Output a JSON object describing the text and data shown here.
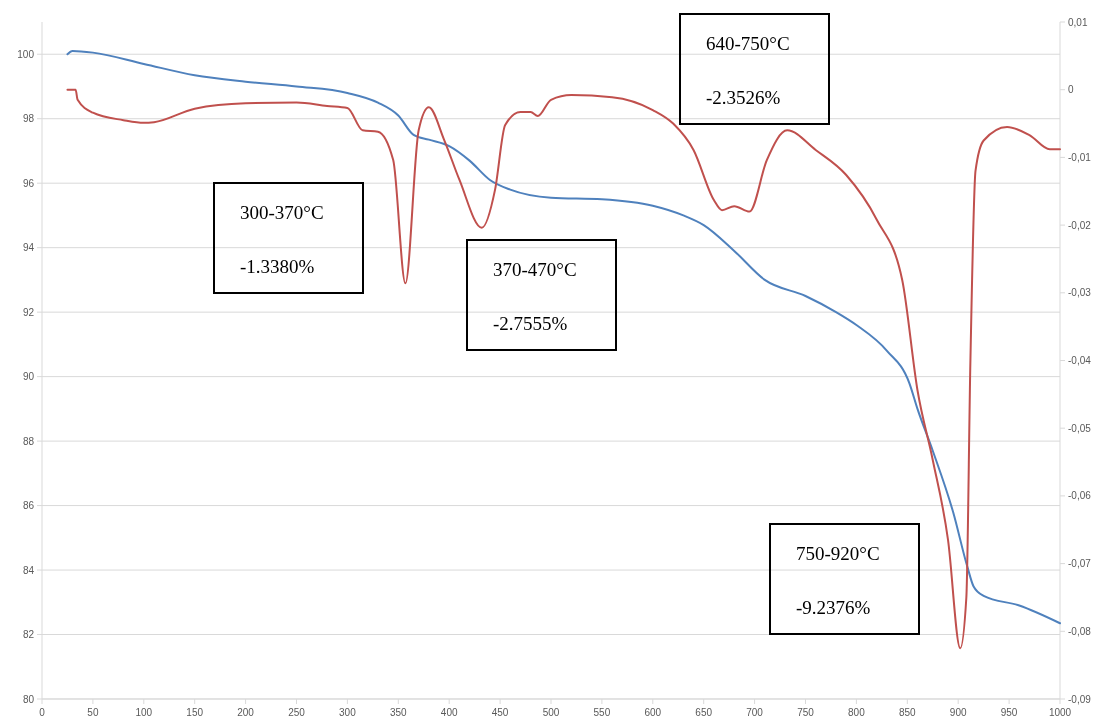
{
  "chart_data": {
    "type": "line",
    "xlim": [
      0,
      1000
    ],
    "xticks": [
      0,
      50,
      100,
      150,
      200,
      250,
      300,
      350,
      400,
      450,
      500,
      550,
      600,
      650,
      700,
      750,
      800,
      850,
      900,
      950,
      1000
    ],
    "ylim": [
      80,
      101
    ],
    "yticks": [
      80,
      82,
      84,
      86,
      88,
      90,
      92,
      94,
      96,
      98,
      100
    ],
    "y2lim": [
      -0.09,
      0.01
    ],
    "y2ticks": [
      {
        "value": -0.09,
        "label": "-0,09"
      },
      {
        "value": -0.08,
        "label": "-0,08"
      },
      {
        "value": -0.07,
        "label": "-0,07"
      },
      {
        "value": -0.06,
        "label": "-0,06"
      },
      {
        "value": -0.05,
        "label": "-0,05"
      },
      {
        "value": -0.04,
        "label": "-0,04"
      },
      {
        "value": -0.03,
        "label": "-0,03"
      },
      {
        "value": -0.02,
        "label": "-0,02"
      },
      {
        "value": -0.01,
        "label": "-0,01"
      },
      0,
      {
        "value": 0.01,
        "label": "0,01"
      }
    ],
    "grid": "y",
    "marker": "none",
    "line_style": "solid",
    "series": [
      {
        "color": "#4f81bd",
        "x": [
          25,
          30,
          50,
          100,
          150,
          200,
          250,
          300,
          330,
          350,
          365,
          380,
          400,
          420,
          440,
          460,
          500,
          550,
          600,
          630,
          650,
          680,
          710,
          750,
          780,
          800,
          830,
          852,
          860,
          875,
          895,
          909,
          915,
          925,
          960,
          1000
        ],
        "values": [
          100.0,
          100.1,
          100.05,
          99.7,
          99.35,
          99.15,
          99.0,
          98.8,
          98.5,
          98.1,
          97.5,
          97.35,
          97.15,
          96.7,
          96.1,
          95.8,
          95.55,
          95.5,
          95.3,
          95.0,
          94.7,
          93.9,
          93.0,
          92.5,
          92.0,
          91.6,
          90.8,
          89.8,
          89.0,
          87.7,
          85.8,
          84.1,
          83.5,
          83.2,
          82.9,
          82.35
        ]
      },
      {
        "color": "#c0504d",
        "axis": "y2",
        "x": [
          25,
          33,
          35,
          50,
          80,
          100,
          110,
          150,
          200,
          250,
          280,
          300,
          315,
          330,
          345,
          357,
          370,
          380,
          395,
          410,
          432,
          445,
          455,
          470,
          480,
          487,
          500,
          520,
          560,
          600,
          620,
          640,
          660,
          668,
          680,
          695,
          712,
          732,
          760,
          790,
          820,
          845,
          860,
          875,
          890,
          902,
          908,
          912,
          917,
          925,
          948,
          970,
          990,
          1000
        ],
        "values": [
          0,
          0,
          -0.0015,
          -0.0034,
          -0.0045,
          -0.0049,
          -0.0048,
          -0.0028,
          -0.002,
          -0.0019,
          -0.0024,
          -0.0027,
          -0.006,
          -0.0062,
          -0.0104,
          -0.0286,
          -0.006,
          -0.0026,
          -0.0074,
          -0.0133,
          -0.0204,
          -0.0148,
          -0.0052,
          -0.0033,
          -0.0033,
          -0.0039,
          -0.0015,
          -0.0008,
          -0.0011,
          -0.003,
          -0.005,
          -0.0089,
          -0.0163,
          -0.0178,
          -0.0172,
          -0.018,
          -0.0104,
          -0.006,
          -0.0089,
          -0.0126,
          -0.0192,
          -0.0281,
          -0.0444,
          -0.0547,
          -0.0665,
          -0.0825,
          -0.075,
          -0.04,
          -0.012,
          -0.0075,
          -0.0055,
          -0.0067,
          -0.0088,
          -0.0088
        ]
      }
    ],
    "annotations": [
      "300-370°C\n-1.3380%",
      "370-470°C\n-2.7555%",
      "640-750°C\n-2.3526%",
      "750-920°C\n-9.2376%"
    ]
  }
}
